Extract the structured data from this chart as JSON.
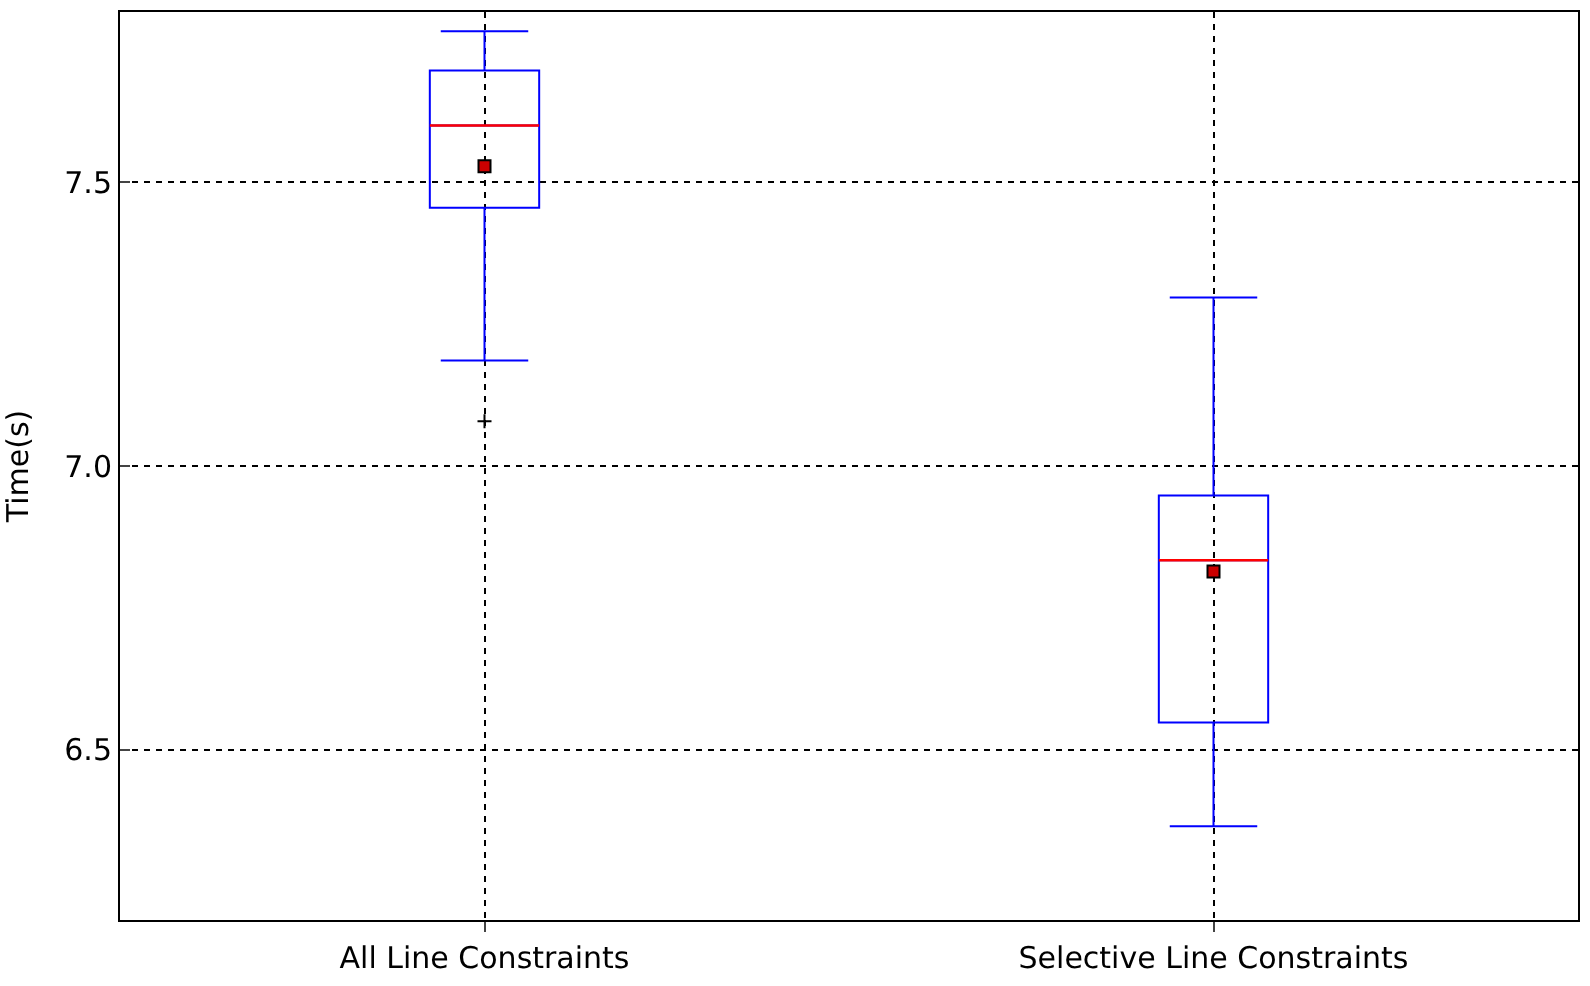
{
  "chart_data": {
    "type": "box",
    "ylabel": "Time(s)",
    "categories": [
      "All Line Constraints",
      "Selective Line Constraints"
    ],
    "boxes": [
      {
        "low": 7.186,
        "q1": 7.455,
        "median": 7.6,
        "q3": 7.697,
        "high": 7.766,
        "mean": 7.528,
        "outliers": [
          7.079
        ]
      },
      {
        "low": 6.365,
        "q1": 6.548,
        "median": 6.834,
        "q3": 6.948,
        "high": 7.297,
        "mean": 6.814
      }
    ],
    "color": "#0000ff",
    "ylim": [
      6.2,
      7.8
    ],
    "yticks": [
      {
        "value": 6.5,
        "label": "6.5"
      },
      {
        "value": 7.0,
        "label": "7.0"
      },
      {
        "value": 7.5,
        "label": "7.5"
      }
    ],
    "grid": true
  }
}
